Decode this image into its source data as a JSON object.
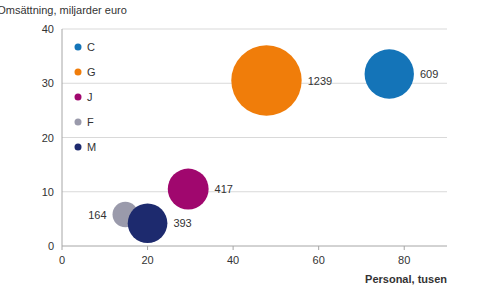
{
  "chart_data": {
    "type": "bubble",
    "y_label": "Omsättning, miljarder euro",
    "x_label": "Personal, tusen",
    "series": [
      {
        "name": "C",
        "color": "#1474b8",
        "x": [
          76.5
        ],
        "values": [
          31.7
        ],
        "sizes": [
          609
        ]
      },
      {
        "name": "G",
        "color": "#f07d0a",
        "x": [
          47.8
        ],
        "values": [
          30.5
        ],
        "sizes": [
          1239
        ]
      },
      {
        "name": "J",
        "color": "#a0076e",
        "x": [
          29.5
        ],
        "values": [
          10.5
        ],
        "sizes": [
          417
        ]
      },
      {
        "name": "F",
        "color": "#9a9aab",
        "x": [
          14.8
        ],
        "values": [
          5.8
        ],
        "sizes": [
          164
        ]
      },
      {
        "name": "M",
        "color": "#1d2a6e",
        "x": [
          20
        ],
        "values": [
          4.2
        ],
        "sizes": [
          393
        ]
      }
    ],
    "xlim": [
      0,
      90
    ],
    "xticks": [
      0,
      20,
      40,
      60,
      80
    ],
    "ylim": [
      0,
      40
    ],
    "yticks": [
      0,
      10,
      20,
      30,
      40
    ],
    "grid": true,
    "legend": "upper left",
    "data_labels": true
  }
}
